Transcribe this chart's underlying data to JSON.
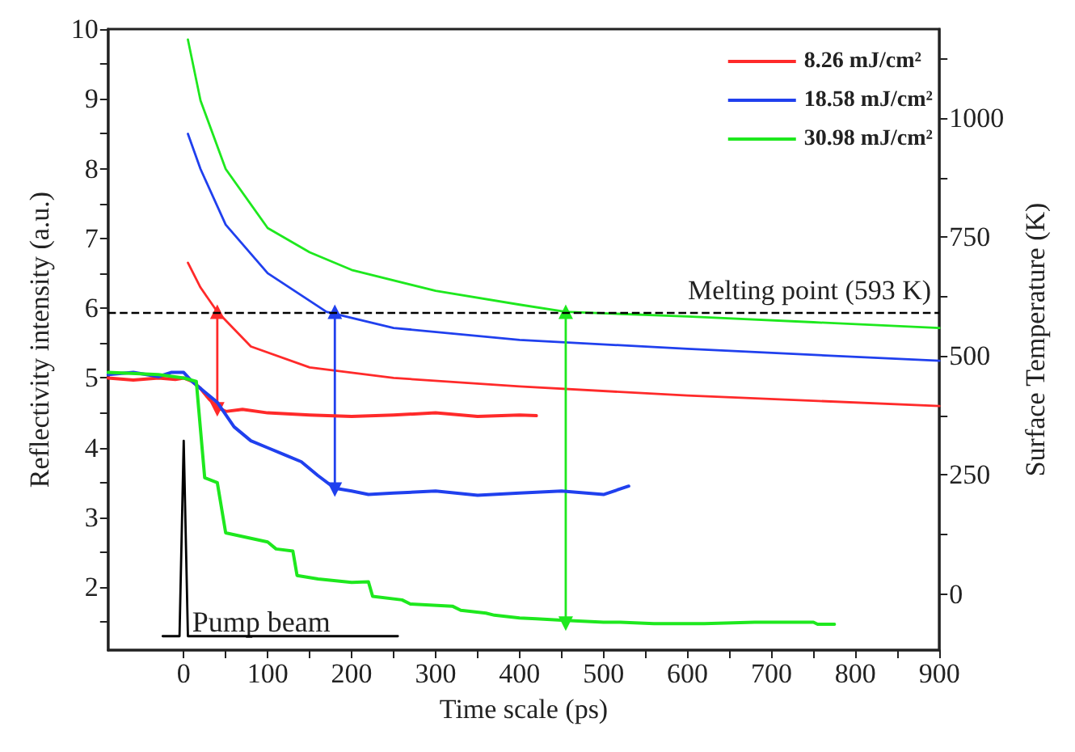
{
  "chart_data": {
    "type": "line",
    "xlabel": "Time scale (ps)",
    "ylabel": "Reflectivity intensity (a.u.)",
    "y2label": "Surface Temperature (K)",
    "xlim": [
      -90,
      900
    ],
    "xticks": [
      0,
      {
        "value": 50,
        "label": null
      },
      100,
      {
        "value": 150,
        "label": null
      },
      200,
      {
        "value": 250,
        "label": null
      },
      300,
      {
        "value": 350,
        "label": null
      },
      400,
      {
        "value": 450,
        "label": null
      },
      500,
      {
        "value": 550,
        "label": null
      },
      600,
      {
        "value": 650,
        "label": null
      },
      700,
      {
        "value": 750,
        "label": null
      },
      800,
      {
        "value": 850,
        "label": null
      },
      900
    ],
    "ylim": [
      1.1,
      10
    ],
    "yticks": [
      {
        "value": 1.5,
        "label": null
      },
      2,
      {
        "value": 2.5,
        "label": null
      },
      3,
      {
        "value": 3.5,
        "label": null
      },
      4,
      {
        "value": 4.5,
        "label": null
      },
      5,
      {
        "value": 5.5,
        "label": null
      },
      6,
      {
        "value": 6.5,
        "label": null
      },
      7,
      {
        "value": 7.5,
        "label": null
      },
      8,
      {
        "value": 8.5,
        "label": null
      },
      9,
      {
        "value": 9.5,
        "label": null
      },
      10
    ],
    "y2lim": [
      -118,
      1187
    ],
    "y2ticks": [
      0,
      {
        "value": 125,
        "label": null
      },
      250,
      {
        "value": 375,
        "label": null
      },
      500,
      {
        "value": 625,
        "label": null
      },
      750,
      {
        "value": 875,
        "label": null
      },
      1000,
      {
        "value": 1125,
        "label": null
      }
    ],
    "grid": false,
    "legend": "top right",
    "marker": "none",
    "line_style": "solid",
    "series": [
      {
        "name": "8.26 mJ/cm²",
        "color": "#ff2a2a",
        "x": [
          -90,
          -60,
          -30,
          -10,
          0,
          10,
          20,
          30,
          40,
          50,
          70,
          100,
          150,
          200,
          250,
          300,
          350,
          400,
          420
        ],
        "values": [
          5.0,
          4.97,
          5.0,
          4.98,
          5.0,
          4.95,
          4.85,
          4.7,
          4.58,
          4.52,
          4.55,
          4.5,
          4.47,
          4.45,
          4.47,
          4.5,
          4.45,
          4.47,
          4.46
        ]
      },
      {
        "name": "18.58 mJ/cm²",
        "color": "#2040ee",
        "x": [
          -90,
          -60,
          -30,
          -15,
          0,
          10,
          20,
          40,
          60,
          80,
          100,
          120,
          140,
          160,
          180,
          200,
          220,
          250,
          300,
          350,
          400,
          450,
          500,
          530
        ],
        "values": [
          5.05,
          5.08,
          5.02,
          5.08,
          5.08,
          4.95,
          4.85,
          4.65,
          4.3,
          4.1,
          4.0,
          3.9,
          3.8,
          3.6,
          3.42,
          3.38,
          3.33,
          3.35,
          3.38,
          3.32,
          3.35,
          3.38,
          3.33,
          3.45
        ]
      },
      {
        "name": "30.98 mJ/cm²",
        "color": "#1ee81e",
        "x": [
          -90,
          -30,
          0,
          15,
          25,
          40,
          50,
          100,
          110,
          130,
          135,
          160,
          200,
          220,
          225,
          260,
          270,
          320,
          330,
          360,
          370,
          400,
          420,
          450,
          500,
          520,
          560,
          620,
          680,
          750,
          755,
          775
        ],
        "values": [
          5.08,
          5.05,
          5.0,
          4.95,
          3.57,
          3.5,
          2.78,
          2.65,
          2.55,
          2.52,
          2.17,
          2.12,
          2.07,
          2.08,
          1.87,
          1.82,
          1.76,
          1.73,
          1.67,
          1.63,
          1.6,
          1.56,
          1.55,
          1.53,
          1.5,
          1.5,
          1.48,
          1.48,
          1.5,
          1.5,
          1.47,
          1.47
        ]
      },
      {
        "color": "#ff2a2a",
        "axis": "y2",
        "x": [
          5,
          20,
          40,
          80,
          150,
          250,
          400,
          600,
          900
        ],
        "values": [
          696,
          644,
          593,
          520,
          476,
          454,
          436,
          417,
          395
        ]
      },
      {
        "color": "#2040ee",
        "axis": "y2",
        "x": [
          5,
          20,
          50,
          100,
          170,
          250,
          400,
          600,
          900
        ],
        "values": [
          967,
          893,
          776,
          674,
          593,
          559,
          534,
          515,
          490
        ]
      },
      {
        "color": "#1ee81e",
        "axis": "y2",
        "x": [
          5,
          20,
          50,
          100,
          150,
          200,
          300,
          400,
          455,
          600,
          750,
          900
        ],
        "values": [
          1165,
          1037,
          893,
          769,
          718,
          681,
          637,
          608,
          593,
          583,
          571,
          559
        ]
      },
      {
        "color": "#000000",
        "x": [
          -25,
          -5,
          0,
          5,
          255
        ],
        "values": [
          1.3,
          1.3,
          4.1,
          1.3,
          1.3
        ]
      },
      {
        "color": "#ff2a2a",
        "x": [
          40,
          40
        ],
        "values": [
          4.55,
          5.95
        ],
        "marker": "triangle"
      },
      {
        "color": "#2040ee",
        "x": [
          180,
          180
        ],
        "values": [
          3.4,
          5.95
        ],
        "marker": "triangle"
      },
      {
        "color": "#1ee81e",
        "x": [
          455,
          455
        ],
        "values": [
          1.48,
          5.95
        ],
        "marker": "triangle"
      }
    ],
    "ref_lines": [
      {
        "axis": "y2",
        "value": 593,
        "label": "Melting point (593 K)",
        "color": "#000000",
        "line_style": "dashed"
      }
    ],
    "annotations": [
      {
        "text": "Pump beam",
        "x": 10,
        "y": 1.3
      }
    ]
  }
}
